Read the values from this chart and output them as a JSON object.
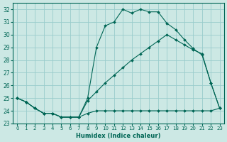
{
  "xlabel": "Humidex (Indice chaleur)",
  "bg_color": "#cce8e4",
  "grid_color": "#99cccc",
  "line_color": "#006655",
  "xlim": [
    -0.5,
    23.5
  ],
  "ylim": [
    23,
    32.5
  ],
  "yticks": [
    23,
    24,
    25,
    26,
    27,
    28,
    29,
    30,
    31,
    32
  ],
  "xticks": [
    0,
    1,
    2,
    3,
    4,
    5,
    6,
    7,
    8,
    9,
    10,
    11,
    12,
    13,
    14,
    15,
    16,
    17,
    18,
    19,
    20,
    21,
    22,
    23
  ],
  "line1_x": [
    0,
    1,
    2,
    3,
    4,
    5,
    6,
    7,
    8,
    9,
    10,
    11,
    12,
    13,
    14,
    15,
    16,
    17,
    18,
    19,
    20,
    21,
    22,
    23
  ],
  "line1_y": [
    25.0,
    24.7,
    24.2,
    23.8,
    23.8,
    23.5,
    23.5,
    23.5,
    23.8,
    24.0,
    24.0,
    24.0,
    24.0,
    24.0,
    24.0,
    24.0,
    24.0,
    24.0,
    24.0,
    24.0,
    24.0,
    24.0,
    24.0,
    24.2
  ],
  "line2_x": [
    0,
    1,
    2,
    3,
    4,
    5,
    6,
    7,
    8,
    9,
    10,
    11,
    12,
    13,
    14,
    15,
    16,
    17,
    18,
    19,
    20,
    21,
    22,
    23
  ],
  "line2_y": [
    25.0,
    24.7,
    24.2,
    23.8,
    23.8,
    23.5,
    23.5,
    23.5,
    24.8,
    25.5,
    26.2,
    26.8,
    27.4,
    28.0,
    28.5,
    29.0,
    29.5,
    30.0,
    29.6,
    29.2,
    28.8,
    28.5,
    26.2,
    24.2
  ],
  "line3_x": [
    0,
    1,
    2,
    3,
    4,
    5,
    6,
    7,
    8,
    9,
    10,
    11,
    12,
    13,
    14,
    15,
    16,
    17,
    18,
    19,
    20,
    21,
    22,
    23
  ],
  "line3_y": [
    25.0,
    24.7,
    24.2,
    23.8,
    23.8,
    23.5,
    23.5,
    23.5,
    25.0,
    29.0,
    30.7,
    31.0,
    32.0,
    31.7,
    32.0,
    31.8,
    31.8,
    30.9,
    30.4,
    29.6,
    28.9,
    28.4,
    26.2,
    24.2
  ]
}
